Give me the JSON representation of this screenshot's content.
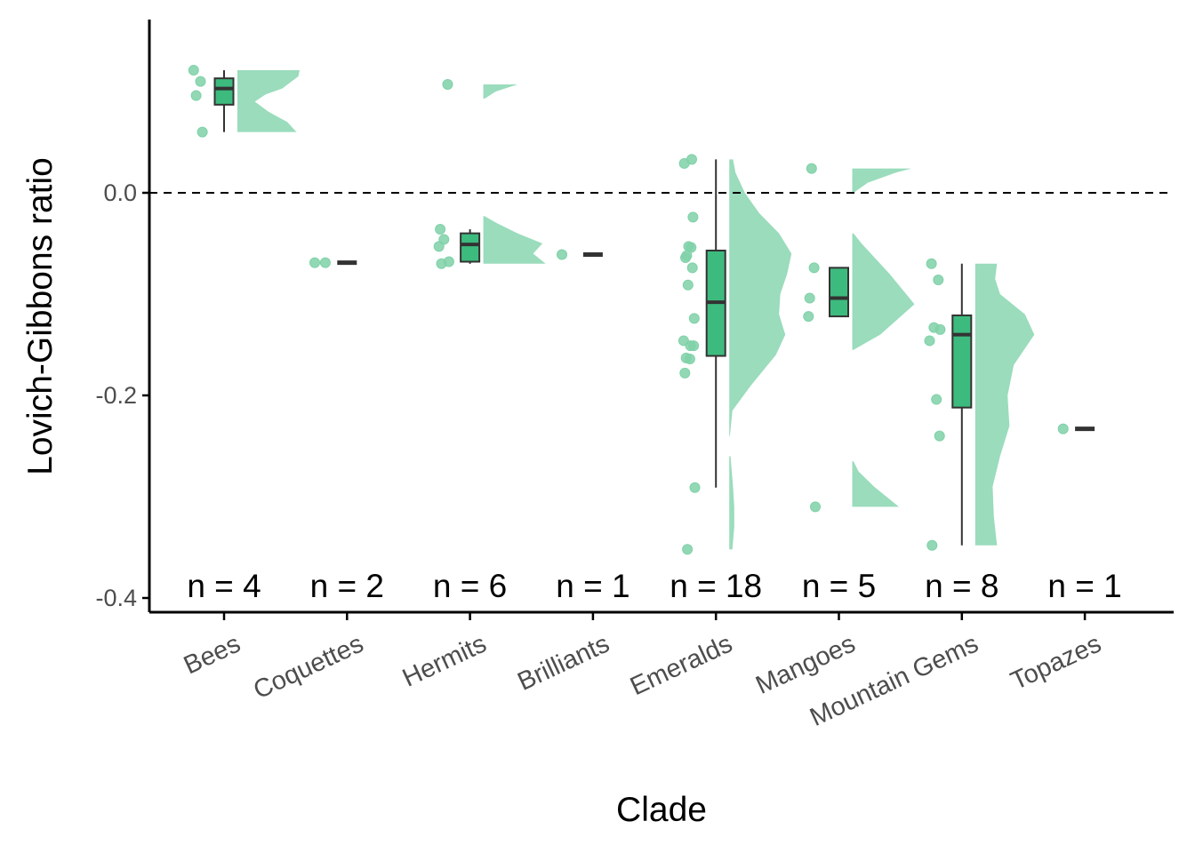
{
  "chart_data": {
    "type": "raincloud",
    "title": "",
    "xlabel": "Clade",
    "ylabel": "Lovich-Gibbons ratio",
    "ylim": [
      -0.415,
      0.17
    ],
    "yticks": [
      -0.4,
      -0.2,
      0.0
    ],
    "ytick_labels": [
      "-0.4",
      "-0.2",
      "0.0"
    ],
    "reference_line": {
      "y": 0.0,
      "style": "dashed"
    },
    "grid": false,
    "legend": "none",
    "colors": {
      "fill": "#3dbb7e",
      "density": "#9adcbc",
      "point": "#7fd1a8",
      "line": "#333333"
    },
    "categories": [
      "Bees",
      "Coquettes",
      "Hermits",
      "Brilliants",
      "Emeralds",
      "Mangoes",
      "Mountain Gems",
      "Topazes"
    ],
    "n_labels": [
      "n = 4",
      "n = 2",
      "n = 6",
      "n = 1",
      "n = 18",
      "n = 5",
      "n = 8",
      "n = 1"
    ],
    "groups": [
      {
        "points": [
          0.121,
          0.11,
          0.096,
          0.06
        ],
        "box": {
          "min": 0.06,
          "q1": 0.087,
          "median": 0.103,
          "q3": 0.113,
          "max": 0.121
        },
        "density": [
          [
            0.06,
            0.95
          ],
          [
            0.07,
            0.8
          ],
          [
            0.08,
            0.5
          ],
          [
            0.09,
            0.28
          ],
          [
            0.097,
            0.45
          ],
          [
            0.103,
            0.72
          ],
          [
            0.109,
            0.85
          ],
          [
            0.115,
            0.98
          ],
          [
            0.121,
            1.0
          ]
        ]
      },
      {
        "points": [
          -0.069,
          -0.069
        ],
        "box": {
          "min": -0.069,
          "q1": -0.069,
          "median": -0.069,
          "q3": -0.069,
          "max": -0.069
        },
        "density": []
      },
      {
        "points": [
          0.107,
          -0.036,
          -0.046,
          -0.053,
          -0.068,
          -0.07
        ],
        "box": {
          "min": -0.07,
          "q1": -0.068,
          "median": -0.051,
          "q3": -0.04,
          "max": -0.036
        },
        "density": [
          [
            -0.07,
            1.0
          ],
          [
            -0.06,
            0.8
          ],
          [
            -0.05,
            0.95
          ],
          [
            -0.04,
            0.55
          ],
          [
            -0.03,
            0.22
          ],
          [
            -0.023,
            0.02
          ],
          [
            0.093,
            0.02
          ],
          [
            0.1,
            0.2
          ],
          [
            0.107,
            0.55
          ]
        ]
      },
      {
        "points": [
          -0.061
        ],
        "box": {
          "min": -0.061,
          "q1": -0.061,
          "median": -0.061,
          "q3": -0.061,
          "max": -0.061
        },
        "density": []
      },
      {
        "points": [
          0.033,
          0.029,
          -0.024,
          -0.053,
          -0.054,
          -0.062,
          -0.064,
          -0.074,
          -0.091,
          -0.124,
          -0.146,
          -0.151,
          -0.151,
          -0.163,
          -0.164,
          -0.178,
          -0.291,
          -0.352
        ],
        "box": {
          "min": -0.291,
          "q1": -0.161,
          "median": -0.108,
          "q3": -0.057,
          "max": 0.033
        },
        "density": [
          [
            -0.352,
            0.05
          ],
          [
            -0.33,
            0.08
          ],
          [
            -0.31,
            0.08
          ],
          [
            -0.29,
            0.06
          ],
          [
            -0.26,
            0.02
          ],
          [
            -0.24,
            0.01
          ],
          [
            -0.215,
            0.05
          ],
          [
            -0.19,
            0.35
          ],
          [
            -0.16,
            0.75
          ],
          [
            -0.14,
            0.9
          ],
          [
            -0.12,
            0.8
          ],
          [
            -0.1,
            0.82
          ],
          [
            -0.08,
            0.93
          ],
          [
            -0.06,
            1.0
          ],
          [
            -0.04,
            0.8
          ],
          [
            -0.02,
            0.48
          ],
          [
            0.0,
            0.25
          ],
          [
            0.02,
            0.1
          ],
          [
            0.033,
            0.06
          ]
        ]
      },
      {
        "points": [
          0.024,
          -0.074,
          -0.104,
          -0.122,
          -0.31
        ],
        "box": {
          "min": -0.122,
          "q1": -0.122,
          "median": -0.104,
          "q3": -0.074,
          "max": -0.074
        },
        "density": [
          [
            -0.31,
            0.75
          ],
          [
            -0.29,
            0.35
          ],
          [
            -0.275,
            0.1
          ],
          [
            -0.265,
            0.02
          ],
          [
            -0.155,
            0.02
          ],
          [
            -0.14,
            0.45
          ],
          [
            -0.11,
            1.0
          ],
          [
            -0.08,
            0.6
          ],
          [
            -0.05,
            0.15
          ],
          [
            -0.04,
            0.02
          ],
          [
            0.0,
            0.02
          ],
          [
            0.01,
            0.25
          ],
          [
            0.02,
            0.7
          ],
          [
            0.024,
            0.95
          ]
        ]
      },
      {
        "points": [
          -0.07,
          -0.086,
          -0.133,
          -0.135,
          -0.146,
          -0.204,
          -0.24,
          -0.348
        ],
        "box": {
          "min": -0.348,
          "q1": -0.212,
          "median": -0.14,
          "q3": -0.121,
          "max": -0.07
        },
        "density": [
          [
            -0.348,
            0.35
          ],
          [
            -0.32,
            0.3
          ],
          [
            -0.29,
            0.28
          ],
          [
            -0.26,
            0.4
          ],
          [
            -0.23,
            0.55
          ],
          [
            -0.2,
            0.52
          ],
          [
            -0.17,
            0.62
          ],
          [
            -0.14,
            0.95
          ],
          [
            -0.12,
            0.8
          ],
          [
            -0.1,
            0.4
          ],
          [
            -0.085,
            0.32
          ],
          [
            -0.07,
            0.35
          ]
        ]
      },
      {
        "points": [
          -0.233
        ],
        "box": {
          "min": -0.233,
          "q1": -0.233,
          "median": -0.233,
          "q3": -0.233,
          "max": -0.233
        },
        "density": []
      }
    ]
  }
}
